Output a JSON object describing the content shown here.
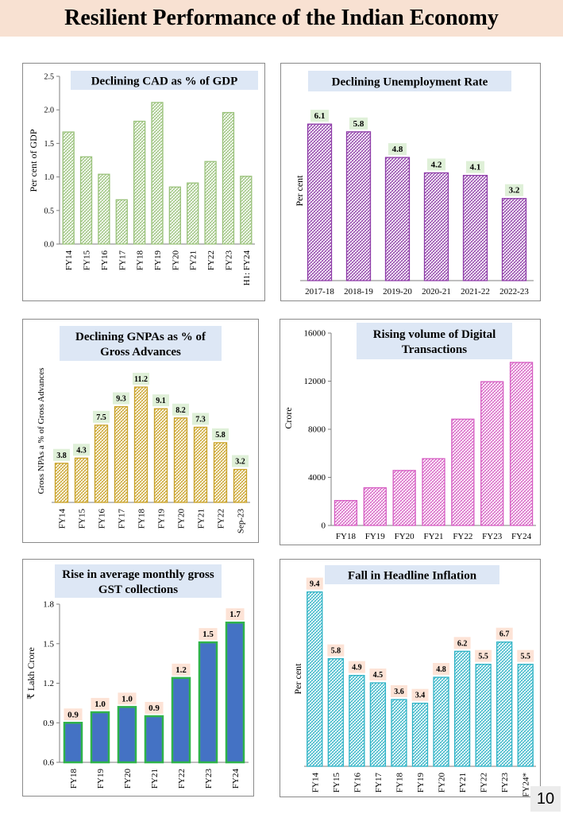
{
  "page": {
    "title": "Resilient Performance of the Indian Economy",
    "page_number": "10"
  },
  "chart_data": [
    {
      "id": "cad",
      "type": "bar",
      "title": "Declining CAD as % of GDP",
      "ylabel": "Per cent of GDP",
      "xlabel": "",
      "categories": [
        "FY14",
        "FY15",
        "FY16",
        "FY17",
        "FY18",
        "FY19",
        "FY20",
        "FY21",
        "FY22",
        "FY23",
        "H1: FY24"
      ],
      "values": [
        1.67,
        1.3,
        1.04,
        0.66,
        1.83,
        2.11,
        0.85,
        0.91,
        1.23,
        1.96,
        1.01
      ],
      "ylim": [
        0,
        2.5
      ],
      "yticks": [
        "0.0",
        "0.5",
        "1.0",
        "1.5",
        "2.0",
        "2.5"
      ],
      "color": "#9ac27b",
      "data_labels": false
    },
    {
      "id": "unemployment",
      "type": "bar",
      "title": "Declining Unemployment Rate",
      "ylabel": "Per cent",
      "xlabel": "",
      "categories": [
        "2017-18",
        "2018-19",
        "2019-20",
        "2020-21",
        "2021-22",
        "2022-23"
      ],
      "values": [
        6.1,
        5.8,
        4.8,
        4.2,
        4.1,
        3.2
      ],
      "labels": [
        "6.1",
        "5.8",
        "4.8",
        "4.2",
        "4.1",
        "3.2"
      ],
      "ylim": [
        0,
        6.6
      ],
      "color": "#8e3ca8",
      "data_labels": true
    },
    {
      "id": "gnpa",
      "type": "bar",
      "title": "Declining GNPAs as % of Gross Advances",
      "ylabel": "Gross NPAs a % of Gross Advances",
      "xlabel": "",
      "categories": [
        "FY14",
        "FY15",
        "FY16",
        "FY17",
        "FY18",
        "FY19",
        "FY20",
        "FY21",
        "FY22",
        "Sep-23"
      ],
      "values": [
        3.8,
        4.3,
        7.5,
        9.3,
        11.2,
        9.1,
        8.2,
        7.3,
        5.8,
        3.2
      ],
      "labels": [
        "3.8",
        "4.3",
        "7.5",
        "9.3",
        "11.2",
        "9.1",
        "8.2",
        "7.3",
        "5.8",
        "3.2"
      ],
      "ylim": [
        0,
        12.2
      ],
      "color": "#c9a227",
      "data_labels": true
    },
    {
      "id": "digital",
      "type": "bar",
      "title": "Rising volume of Digital Transactions",
      "ylabel": "Crore",
      "xlabel": "",
      "categories": [
        "FY18",
        "FY19",
        "FY20",
        "FY21",
        "FY22",
        "FY23",
        "FY24"
      ],
      "values": [
        2071,
        3134,
        4572,
        5554,
        8840,
        11958,
        13560
      ],
      "ylim": [
        0,
        16000
      ],
      "yticks": [
        "0",
        "4000",
        "8000",
        "12000",
        "16000"
      ],
      "color": "#d65ec3",
      "data_labels": false
    },
    {
      "id": "gst",
      "type": "bar",
      "title": "Rise in average monthly gross GST collections",
      "ylabel": "₹ Lakh Crore",
      "xlabel": "",
      "categories": [
        "FY18",
        "FY19",
        "FY20",
        "FY21",
        "FY22",
        "FY23",
        "FY24"
      ],
      "values": [
        0.9,
        0.98,
        1.02,
        0.95,
        1.24,
        1.51,
        1.66
      ],
      "labels": [
        "0.9",
        "1.0",
        "1.0",
        "0.9",
        "1.2",
        "1.5",
        "1.7"
      ],
      "ylim": [
        0.6,
        1.8
      ],
      "yticks": [
        "0.6",
        "0.9",
        "1.2",
        "1.5",
        "1.8"
      ],
      "color": "#4472c4",
      "data_labels": true
    },
    {
      "id": "inflation",
      "type": "bar",
      "title": "Fall in Headline Inflation",
      "ylabel": "Per cent",
      "xlabel": "",
      "categories": [
        "FY14",
        "FY15",
        "FY16",
        "FY17",
        "FY18",
        "FY19",
        "FY20",
        "FY21",
        "FY22",
        "FY23",
        "FY24*"
      ],
      "values": [
        9.4,
        5.8,
        4.9,
        4.5,
        3.6,
        3.4,
        4.8,
        6.2,
        5.5,
        6.7,
        5.5
      ],
      "labels": [
        "9.4",
        "5.8",
        "4.9",
        "4.5",
        "3.6",
        "3.4",
        "4.8",
        "6.2",
        "5.5",
        "6.7",
        "5.5"
      ],
      "ylim": [
        0,
        9.6
      ],
      "color": "#2fb3c6",
      "data_labels": true
    }
  ]
}
